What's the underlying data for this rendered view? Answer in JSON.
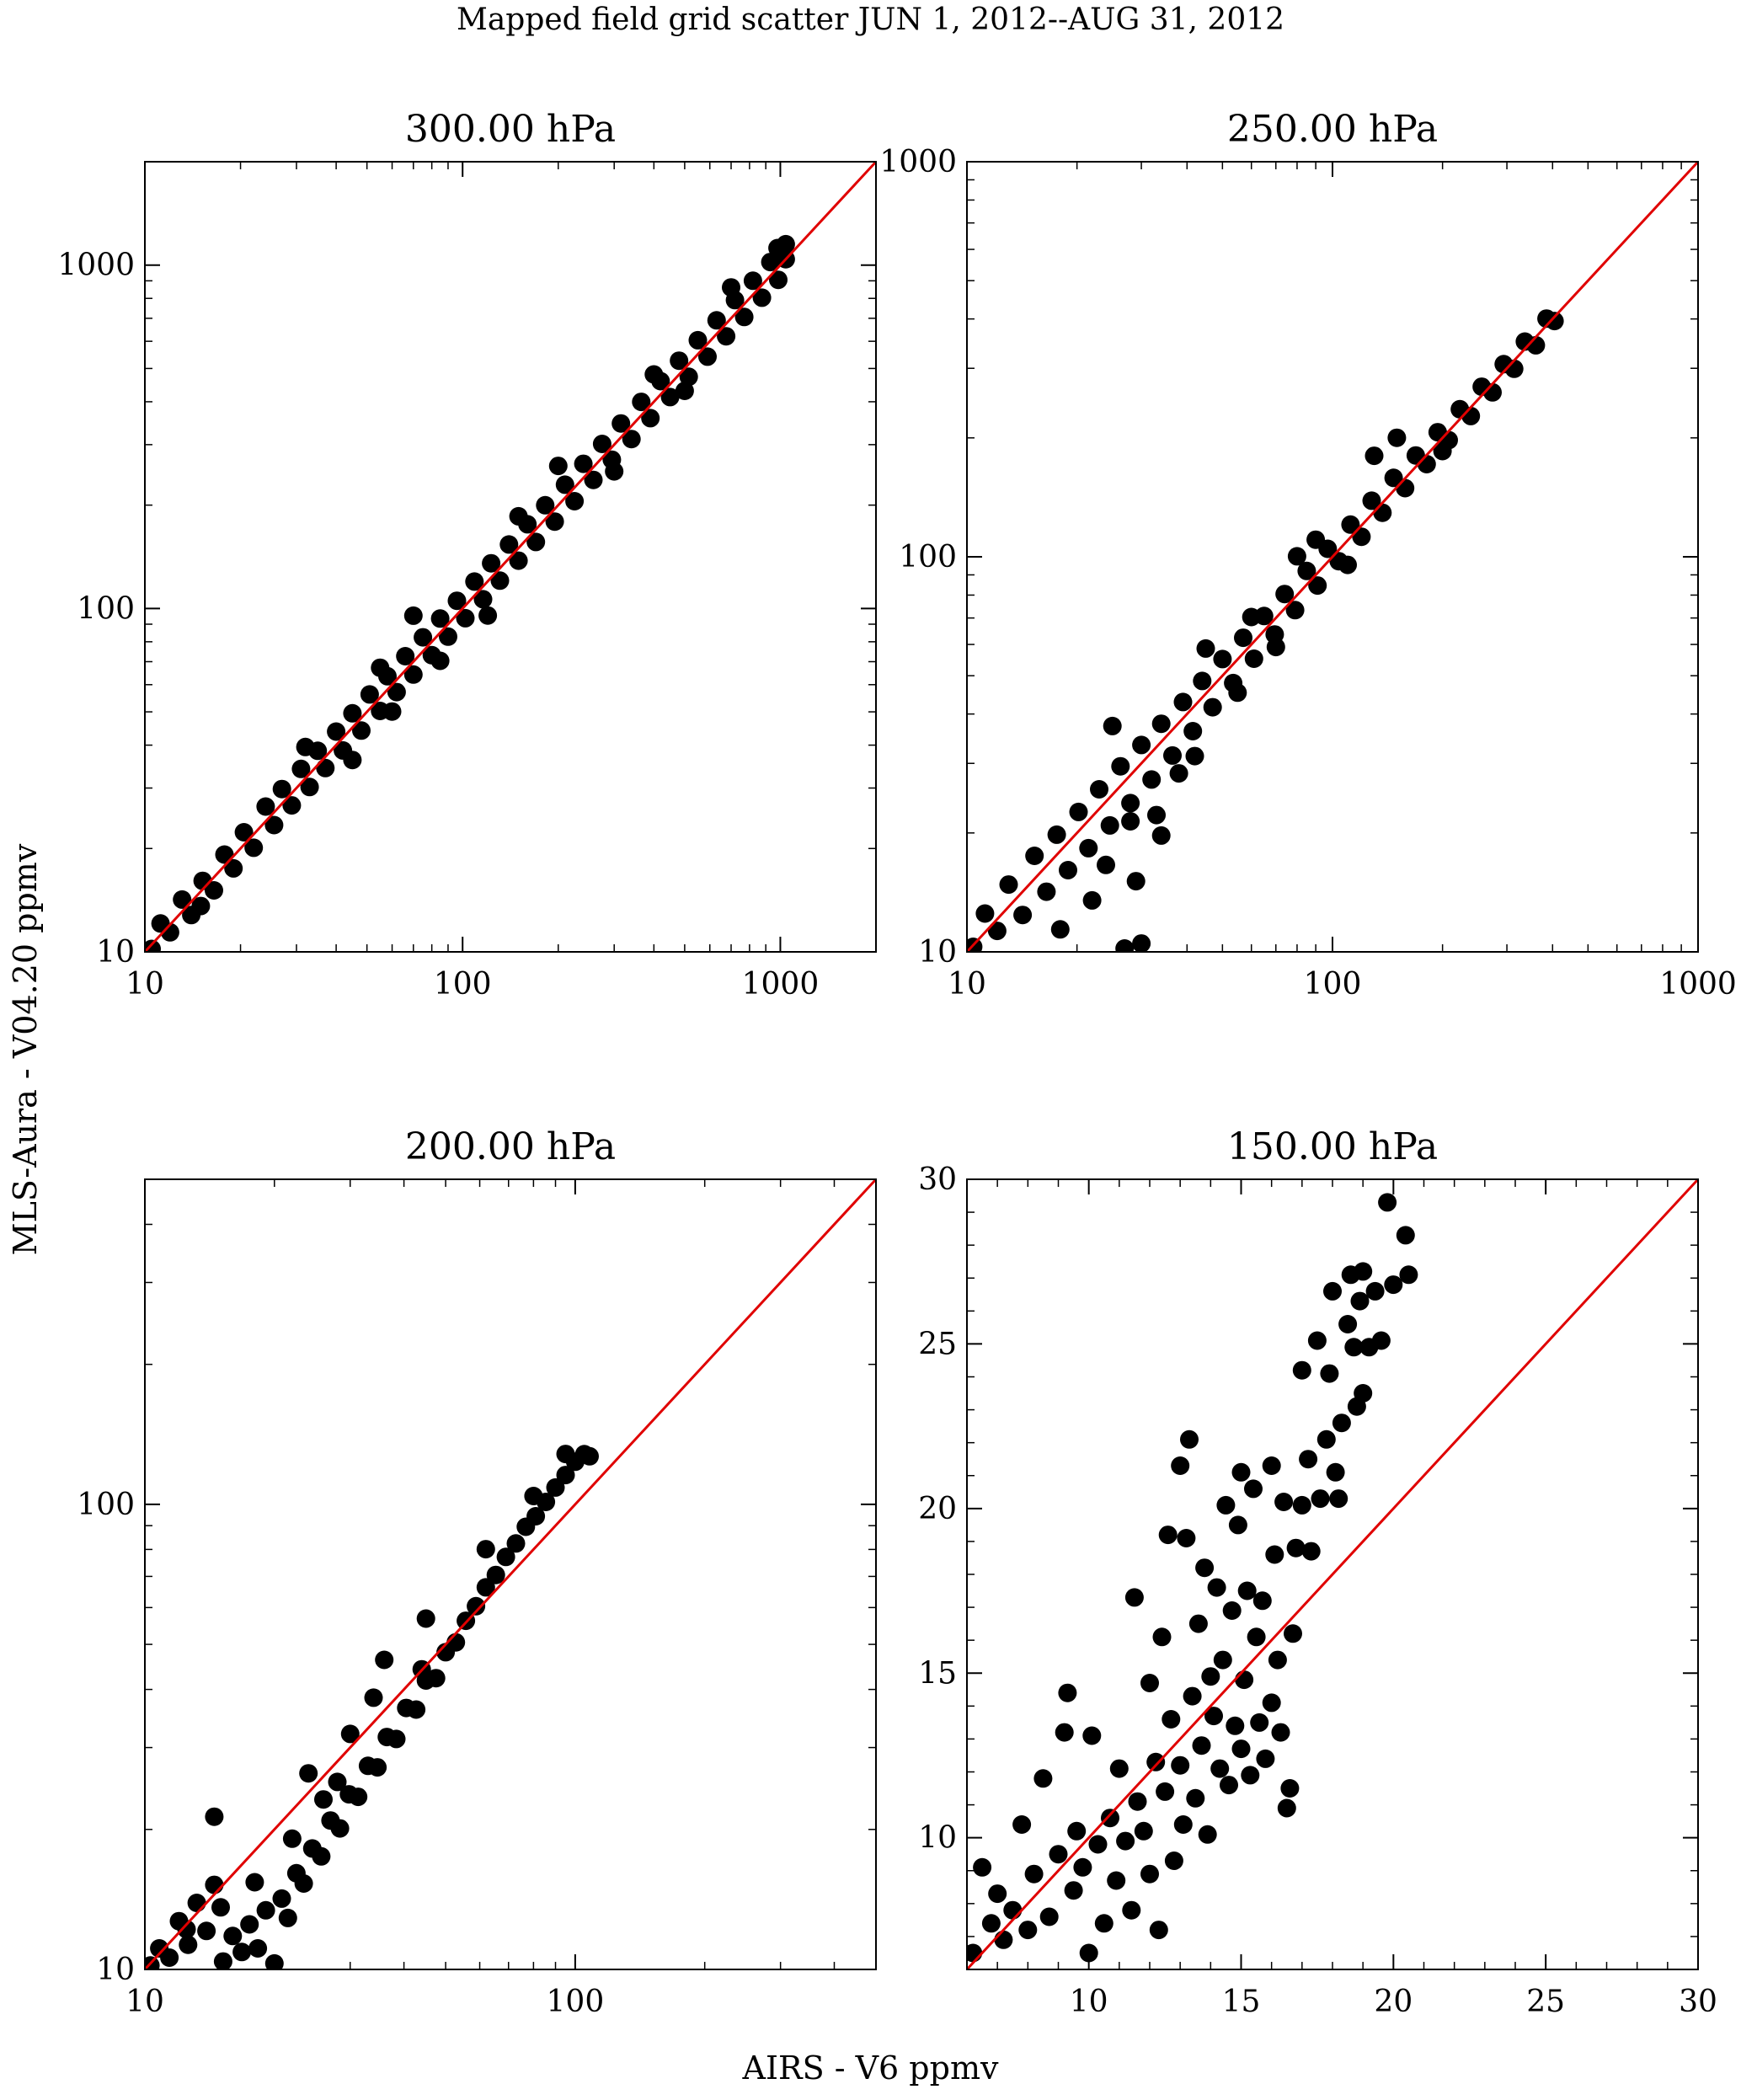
{
  "figure": {
    "title": "Mapped field grid scatter JUN  1, 2012--AUG 31, 2012",
    "xlabel": "AIRS - V6 ppmv",
    "ylabel": "MLS-Aura - V04.20 ppmv"
  },
  "colors": {
    "points": "#000000",
    "identity_line": "#e00000",
    "axes": "#000000",
    "background": "#ffffff"
  },
  "chart_data": [
    {
      "type": "scatter",
      "title": "300.00 hPa",
      "xscale": "log",
      "yscale": "log",
      "xlim": [
        10,
        2000
      ],
      "ylim": [
        10,
        2000
      ],
      "xticks": [
        10,
        100,
        1000
      ],
      "yticks": [
        10,
        100,
        1000
      ],
      "xticklabels": [
        "10",
        "100",
        "1000"
      ],
      "yticklabels": [
        "10",
        "100",
        "1000"
      ],
      "identity_line": true,
      "points": [
        [
          10.5,
          10.2
        ],
        [
          11.2,
          12.1
        ],
        [
          12,
          11.4
        ],
        [
          13.1,
          14.2
        ],
        [
          14,
          12.8
        ],
        [
          15.2,
          16.1
        ],
        [
          16.5,
          15.1
        ],
        [
          17.8,
          19.2
        ],
        [
          19,
          17.5
        ],
        [
          20.5,
          22.3
        ],
        [
          22,
          20.1
        ],
        [
          24,
          26.5
        ],
        [
          25.5,
          23.4
        ],
        [
          27,
          29.8
        ],
        [
          29,
          26.7
        ],
        [
          31,
          34.1
        ],
        [
          33,
          30.2
        ],
        [
          35,
          38.5
        ],
        [
          37,
          34.3
        ],
        [
          40,
          43.8
        ],
        [
          42,
          38.6
        ],
        [
          45,
          49.5
        ],
        [
          48,
          44.1
        ],
        [
          51,
          56.2
        ],
        [
          55,
          50.3
        ],
        [
          58,
          63.5
        ],
        [
          62,
          57.1
        ],
        [
          66,
          72.6
        ],
        [
          70,
          64.2
        ],
        [
          75,
          82.4
        ],
        [
          80,
          73.1
        ],
        [
          85,
          93.5
        ],
        [
          90,
          82.8
        ],
        [
          96,
          105.3
        ],
        [
          102,
          93.7
        ],
        [
          109,
          119.8
        ],
        [
          116,
          106.4
        ],
        [
          123,
          135.4
        ],
        [
          131,
          120.5
        ],
        [
          140,
          153.6
        ],
        [
          150,
          137.8
        ],
        [
          160,
          175.9
        ],
        [
          170,
          156.2
        ],
        [
          182,
          199.8
        ],
        [
          195,
          179.1
        ],
        [
          210,
          229.4
        ],
        [
          225,
          205.3
        ],
        [
          240,
          263.9
        ],
        [
          258,
          236.8
        ],
        [
          275,
          301.5
        ],
        [
          295,
          271.2
        ],
        [
          315,
          345.8
        ],
        [
          340,
          311.5
        ],
        [
          365,
          399.7
        ],
        [
          390,
          358.4
        ],
        [
          420,
          459.3
        ],
        [
          450,
          412.6
        ],
        [
          480,
          526.8
        ],
        [
          515,
          472.9
        ],
        [
          550,
          604.1
        ],
        [
          590,
          541.3
        ],
        [
          630,
          690.6
        ],
        [
          675,
          620.4
        ],
        [
          720,
          790.8
        ],
        [
          770,
          706.2
        ],
        [
          820,
          900.5
        ],
        [
          875,
          803.7
        ],
        [
          930,
          1020.4
        ],
        [
          985,
          906.1
        ],
        [
          1040,
          1150.2
        ],
        [
          1040,
          1040.5
        ],
        [
          980,
          1120.8
        ],
        [
          32,
          39.5
        ],
        [
          45,
          36.2
        ],
        [
          70,
          95.3
        ],
        [
          120,
          95.4
        ],
        [
          200,
          260.1
        ],
        [
          300,
          250.7
        ],
        [
          15,
          13.6
        ],
        [
          55,
          67.2
        ],
        [
          85,
          70.4
        ],
        [
          400,
          480.3
        ],
        [
          60,
          50.1
        ],
        [
          150,
          185.6
        ],
        [
          500,
          430.2
        ],
        [
          700,
          860.9
        ]
      ]
    },
    {
      "type": "scatter",
      "title": "250.00 hPa",
      "xscale": "log",
      "yscale": "log",
      "xlim": [
        10,
        1000
      ],
      "ylim": [
        10,
        1000
      ],
      "xticks": [
        10,
        100,
        1000
      ],
      "yticks": [
        10,
        100,
        1000
      ],
      "xticklabels": [
        "10",
        "100",
        "1000"
      ],
      "yticklabels": [
        "10",
        "100",
        "1000"
      ],
      "identity_line": true,
      "points": [
        [
          10.4,
          10.3
        ],
        [
          11.2,
          12.5
        ],
        [
          12.1,
          11.3
        ],
        [
          13,
          14.8
        ],
        [
          14.2,
          12.4
        ],
        [
          15.3,
          17.5
        ],
        [
          16.5,
          14.2
        ],
        [
          17.6,
          19.8
        ],
        [
          18.9,
          16.1
        ],
        [
          20.2,
          22.6
        ],
        [
          21.5,
          18.3
        ],
        [
          23,
          25.8
        ],
        [
          24.6,
          20.9
        ],
        [
          26.3,
          29.5
        ],
        [
          28,
          23.8
        ],
        [
          30,
          33.4
        ],
        [
          32,
          27.3
        ],
        [
          34,
          37.8
        ],
        [
          36.5,
          31.4
        ],
        [
          39,
          42.9
        ],
        [
          41.5,
          36.2
        ],
        [
          44,
          48.5
        ],
        [
          47,
          41.6
        ],
        [
          50,
          55.1
        ],
        [
          53.5,
          47.9
        ],
        [
          57,
          62.4
        ],
        [
          61,
          55.2
        ],
        [
          65,
          70.8
        ],
        [
          69.5,
          63.6
        ],
        [
          74,
          80.5
        ],
        [
          79,
          73.3
        ],
        [
          85,
          92.1
        ],
        [
          91,
          84.6
        ],
        [
          97,
          104.8
        ],
        [
          104,
          97.5
        ],
        [
          112,
          120.6
        ],
        [
          120,
          112.4
        ],
        [
          128,
          138.7
        ],
        [
          137,
          129.3
        ],
        [
          147,
          158.4
        ],
        [
          158,
          149.2
        ],
        [
          169,
          180.5
        ],
        [
          181,
          171.6
        ],
        [
          194,
          206.7
        ],
        [
          208,
          197.4
        ],
        [
          223,
          236.3
        ],
        [
          239,
          227.1
        ],
        [
          256,
          269.5
        ],
        [
          274,
          260.8
        ],
        [
          294,
          307.4
        ],
        [
          314,
          299.2
        ],
        [
          336,
          350.6
        ],
        [
          360,
          343.1
        ],
        [
          385,
          400.8
        ],
        [
          405,
          395.2
        ],
        [
          25,
          37.3
        ],
        [
          27,
          10.2
        ],
        [
          22,
          13.5
        ],
        [
          29,
          15.1
        ],
        [
          30,
          10.5
        ],
        [
          18,
          11.4
        ],
        [
          24,
          16.6
        ],
        [
          33,
          22.2
        ],
        [
          45,
          58.6
        ],
        [
          60,
          70.4
        ],
        [
          38,
          28.3
        ],
        [
          70,
          59.1
        ],
        [
          90,
          110.5
        ],
        [
          130,
          180.2
        ],
        [
          55,
          45.3
        ],
        [
          110,
          95.4
        ],
        [
          80,
          100.3
        ],
        [
          200,
          185.2
        ],
        [
          150,
          200.1
        ],
        [
          28,
          21.4
        ],
        [
          34,
          19.7
        ],
        [
          42,
          31.3
        ]
      ]
    },
    {
      "type": "scatter",
      "title": "200.00 hPa",
      "xscale": "log",
      "yscale": "log",
      "xlim": [
        10,
        500
      ],
      "ylim": [
        10,
        500
      ],
      "xticks": [
        10,
        100
      ],
      "yticks": [
        10,
        100
      ],
      "xticklabels": [
        "10",
        "100"
      ],
      "yticklabels": [
        "10",
        "100"
      ],
      "identity_line": true,
      "points": [
        [
          10.3,
          10.2
        ],
        [
          10.8,
          11.1
        ],
        [
          11.4,
          10.6
        ],
        [
          12,
          12.7
        ],
        [
          12.6,
          11.3
        ],
        [
          13.2,
          13.9
        ],
        [
          13.9,
          12.1
        ],
        [
          14.5,
          15.2
        ],
        [
          15.2,
          10.4
        ],
        [
          16,
          11.8
        ],
        [
          16.8,
          10.9
        ],
        [
          17.5,
          12.5
        ],
        [
          18.3,
          11.1
        ],
        [
          19.1,
          13.4
        ],
        [
          20,
          10.3
        ],
        [
          20.8,
          14.2
        ],
        [
          21.5,
          12.9
        ],
        [
          22.5,
          16.1
        ],
        [
          23.4,
          15.3
        ],
        [
          24.5,
          18.2
        ],
        [
          25.7,
          17.5
        ],
        [
          27,
          20.9
        ],
        [
          28.4,
          20.1
        ],
        [
          29.8,
          23.8
        ],
        [
          31.3,
          23.5
        ],
        [
          33,
          27.4
        ],
        [
          34.7,
          27.2
        ],
        [
          36.5,
          31.6
        ],
        [
          38.4,
          31.3
        ],
        [
          40.5,
          36.5
        ],
        [
          42.7,
          36.2
        ],
        [
          45,
          41.8
        ],
        [
          47.5,
          42.3
        ],
        [
          50,
          48.1
        ],
        [
          52.8,
          50.5
        ],
        [
          55.7,
          56.2
        ],
        [
          58.8,
          60.4
        ],
        [
          62,
          66.3
        ],
        [
          65.4,
          70.5
        ],
        [
          69,
          77.1
        ],
        [
          72.8,
          82.4
        ],
        [
          76.8,
          89.5
        ],
        [
          81,
          94.3
        ],
        [
          85.5,
          101.2
        ],
        [
          90,
          108.7
        ],
        [
          95,
          115.6
        ],
        [
          100,
          123.5
        ],
        [
          105,
          128.2
        ],
        [
          108,
          126.9
        ],
        [
          14.5,
          21.3
        ],
        [
          24,
          26.4
        ],
        [
          30,
          32.1
        ],
        [
          36,
          46.3
        ],
        [
          44,
          44.2
        ],
        [
          45,
          56.8
        ],
        [
          15,
          13.6
        ],
        [
          18,
          15.4
        ],
        [
          26,
          23.2
        ],
        [
          34,
          38.4
        ],
        [
          62,
          80.1
        ],
        [
          80,
          104.2
        ],
        [
          95,
          128.3
        ],
        [
          12.5,
          12.2
        ],
        [
          22,
          19.1
        ],
        [
          28,
          25.3
        ]
      ]
    },
    {
      "type": "scatter",
      "title": "150.00 hPa",
      "xscale": "linear",
      "yscale": "linear",
      "xlim": [
        6,
        30
      ],
      "ylim": [
        6,
        30
      ],
      "xticks": [
        10,
        15,
        20,
        25,
        30
      ],
      "yticks": [
        10,
        15,
        20,
        25,
        30
      ],
      "xticklabels": [
        "10",
        "15",
        "20",
        "25",
        "30"
      ],
      "yticklabels": [
        "10",
        "15",
        "20",
        "25",
        "30"
      ],
      "identity_line": true,
      "points": [
        [
          6.2,
          6.5
        ],
        [
          6.5,
          9.1
        ],
        [
          6.8,
          7.4
        ],
        [
          7,
          8.3
        ],
        [
          7.2,
          6.9
        ],
        [
          7.5,
          7.8
        ],
        [
          7.8,
          10.4
        ],
        [
          8,
          7.2
        ],
        [
          8.2,
          8.9
        ],
        [
          8.5,
          11.8
        ],
        [
          8.7,
          7.6
        ],
        [
          9,
          9.5
        ],
        [
          9.2,
          13.2
        ],
        [
          9.3,
          14.4
        ],
        [
          9.5,
          8.4
        ],
        [
          9.6,
          10.2
        ],
        [
          9.8,
          9.1
        ],
        [
          10,
          6.5
        ],
        [
          10.1,
          13.1
        ],
        [
          10.3,
          9.8
        ],
        [
          10.5,
          7.4
        ],
        [
          10.7,
          10.6
        ],
        [
          10.9,
          8.7
        ],
        [
          11,
          12.1
        ],
        [
          11.2,
          9.9
        ],
        [
          11.4,
          7.8
        ],
        [
          11.5,
          17.3
        ],
        [
          11.6,
          11.1
        ],
        [
          11.8,
          10.2
        ],
        [
          12,
          14.7
        ],
        [
          12,
          8.9
        ],
        [
          12.2,
          12.3
        ],
        [
          12.3,
          7.2
        ],
        [
          12.4,
          16.1
        ],
        [
          12.5,
          11.4
        ],
        [
          12.6,
          19.2
        ],
        [
          12.7,
          13.6
        ],
        [
          12.8,
          9.3
        ],
        [
          13,
          21.3
        ],
        [
          13,
          12.2
        ],
        [
          13.1,
          10.4
        ],
        [
          13.2,
          19.1
        ],
        [
          13.3,
          22.1
        ],
        [
          13.4,
          14.3
        ],
        [
          13.5,
          11.2
        ],
        [
          13.6,
          16.5
        ],
        [
          13.7,
          12.8
        ],
        [
          13.8,
          18.2
        ],
        [
          13.9,
          10.1
        ],
        [
          14,
          14.9
        ],
        [
          14.1,
          13.7
        ],
        [
          14.2,
          17.6
        ],
        [
          14.3,
          12.1
        ],
        [
          14.4,
          15.4
        ],
        [
          14.5,
          20.1
        ],
        [
          14.6,
          11.6
        ],
        [
          14.7,
          16.9
        ],
        [
          14.8,
          13.4
        ],
        [
          14.9,
          19.5
        ],
        [
          15,
          12.7
        ],
        [
          15,
          21.1
        ],
        [
          15.1,
          14.8
        ],
        [
          15.2,
          17.5
        ],
        [
          15.3,
          11.9
        ],
        [
          15.4,
          20.6
        ],
        [
          15.5,
          16.1
        ],
        [
          15.6,
          13.5
        ],
        [
          15.7,
          17.2
        ],
        [
          15.8,
          12.4
        ],
        [
          16,
          14.1
        ],
        [
          16,
          21.3
        ],
        [
          16.1,
          18.6
        ],
        [
          16.2,
          15.4
        ],
        [
          16.3,
          13.2
        ],
        [
          16.4,
          20.2
        ],
        [
          16.5,
          10.9
        ],
        [
          16.6,
          11.5
        ],
        [
          16.7,
          16.2
        ],
        [
          16.8,
          18.8
        ],
        [
          17,
          20.1
        ],
        [
          17,
          24.2
        ],
        [
          17.2,
          21.5
        ],
        [
          17.3,
          18.7
        ],
        [
          17.5,
          25.1
        ],
        [
          17.6,
          20.3
        ],
        [
          17.8,
          22.1
        ],
        [
          17.9,
          24.1
        ],
        [
          18,
          26.6
        ],
        [
          18.1,
          21.1
        ],
        [
          18.2,
          20.3
        ],
        [
          18.3,
          22.6
        ],
        [
          18.5,
          25.6
        ],
        [
          18.6,
          27.1
        ],
        [
          18.7,
          24.9
        ],
        [
          18.8,
          23.1
        ],
        [
          18.9,
          26.3
        ],
        [
          19,
          27.2
        ],
        [
          19,
          23.5
        ],
        [
          19.2,
          24.9
        ],
        [
          19.4,
          26.6
        ],
        [
          19.6,
          25.1
        ],
        [
          19.8,
          29.3
        ],
        [
          20,
          26.8
        ],
        [
          20.4,
          28.3
        ],
        [
          20.5,
          27.1
        ]
      ]
    }
  ]
}
